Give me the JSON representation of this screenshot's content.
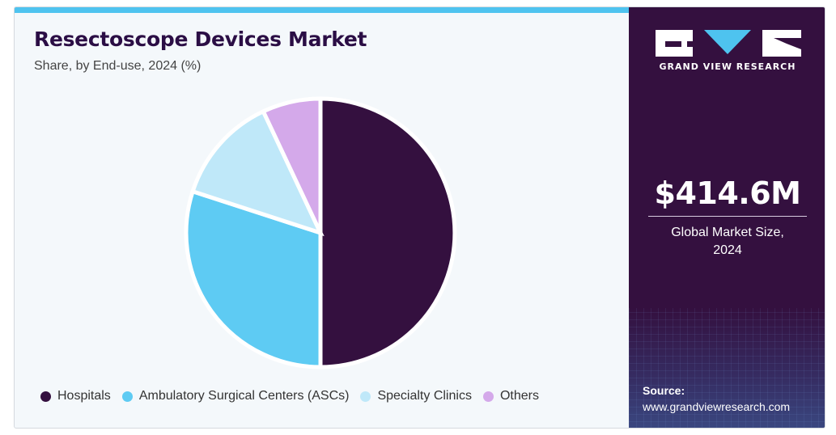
{
  "header": {
    "title": "Resectoscope Devices Market",
    "subtitle": "Share, by End-use, 2024 (%)"
  },
  "chart_data": {
    "type": "pie",
    "title": "Resectoscope Devices Market",
    "subtitle": "Share, by End-use, 2024 (%)",
    "legend_position": "bottom",
    "slices": [
      {
        "label": "Hospitals",
        "value": 50.0,
        "color": "#34103f"
      },
      {
        "label": "Ambulatory Surgical Centers (ASCs)",
        "value": 30.0,
        "color": "#5ecbf3"
      },
      {
        "label": "Specialty Clinics",
        "value": 13.0,
        "color": "#bfe8f9"
      },
      {
        "label": "Others",
        "value": 7.0,
        "color": "#d4a9ea"
      }
    ]
  },
  "sidebar": {
    "brand": "GRAND VIEW RESEARCH",
    "market_value": "$414.6M",
    "market_label": "Global Market Size,\n2024",
    "source_label": "Source:",
    "source_url": "www.grandviewresearch.com",
    "accent_color": "#4ec3ef",
    "background_color": "#34103f"
  }
}
